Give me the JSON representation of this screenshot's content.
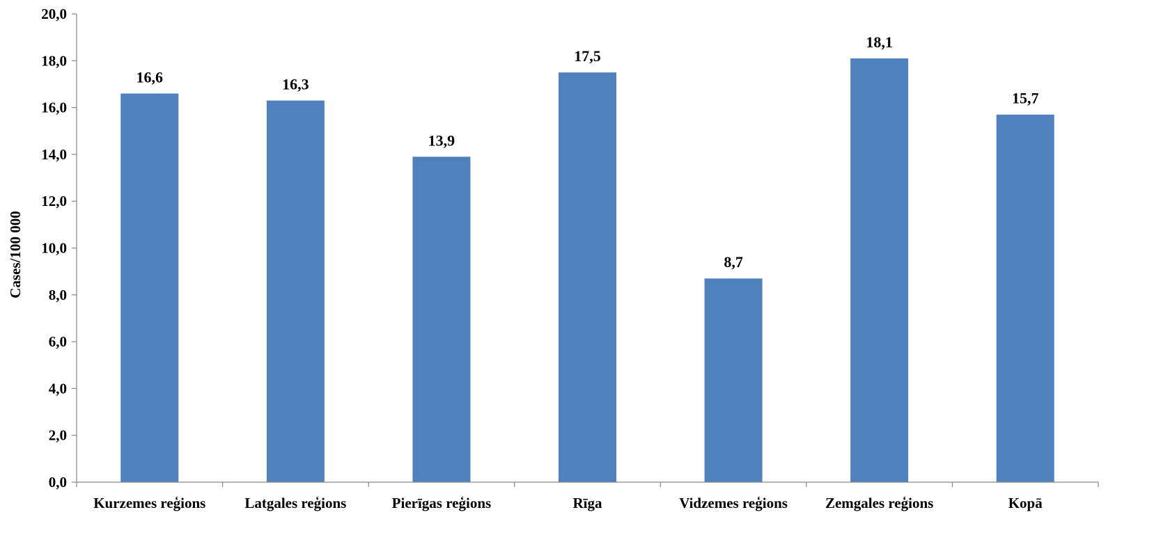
{
  "chart_data": {
    "type": "bar",
    "categories": [
      "Kurzemes reģions",
      "Latgales reģions",
      "Pierīgas reģions",
      "Rīga",
      "Vidzemes reģions",
      "Zemgales reģions",
      "Kopā"
    ],
    "values": [
      16.6,
      16.3,
      13.9,
      17.5,
      8.7,
      18.1,
      15.7
    ],
    "data_labels": [
      "16,6",
      "16,3",
      "13,9",
      "17,5",
      "8,7",
      "18,1",
      "15,7"
    ],
    "title": "",
    "xlabel": "",
    "ylabel": "Cases/100 000",
    "ylim": [
      0,
      20
    ],
    "yticks": [
      "0,0",
      "2,0",
      "4,0",
      "6,0",
      "8,0",
      "10,0",
      "12,0",
      "14,0",
      "16,0",
      "18,0",
      "20,0"
    ],
    "bar_color": "#4f81bd",
    "grid": false,
    "legend": "none"
  }
}
